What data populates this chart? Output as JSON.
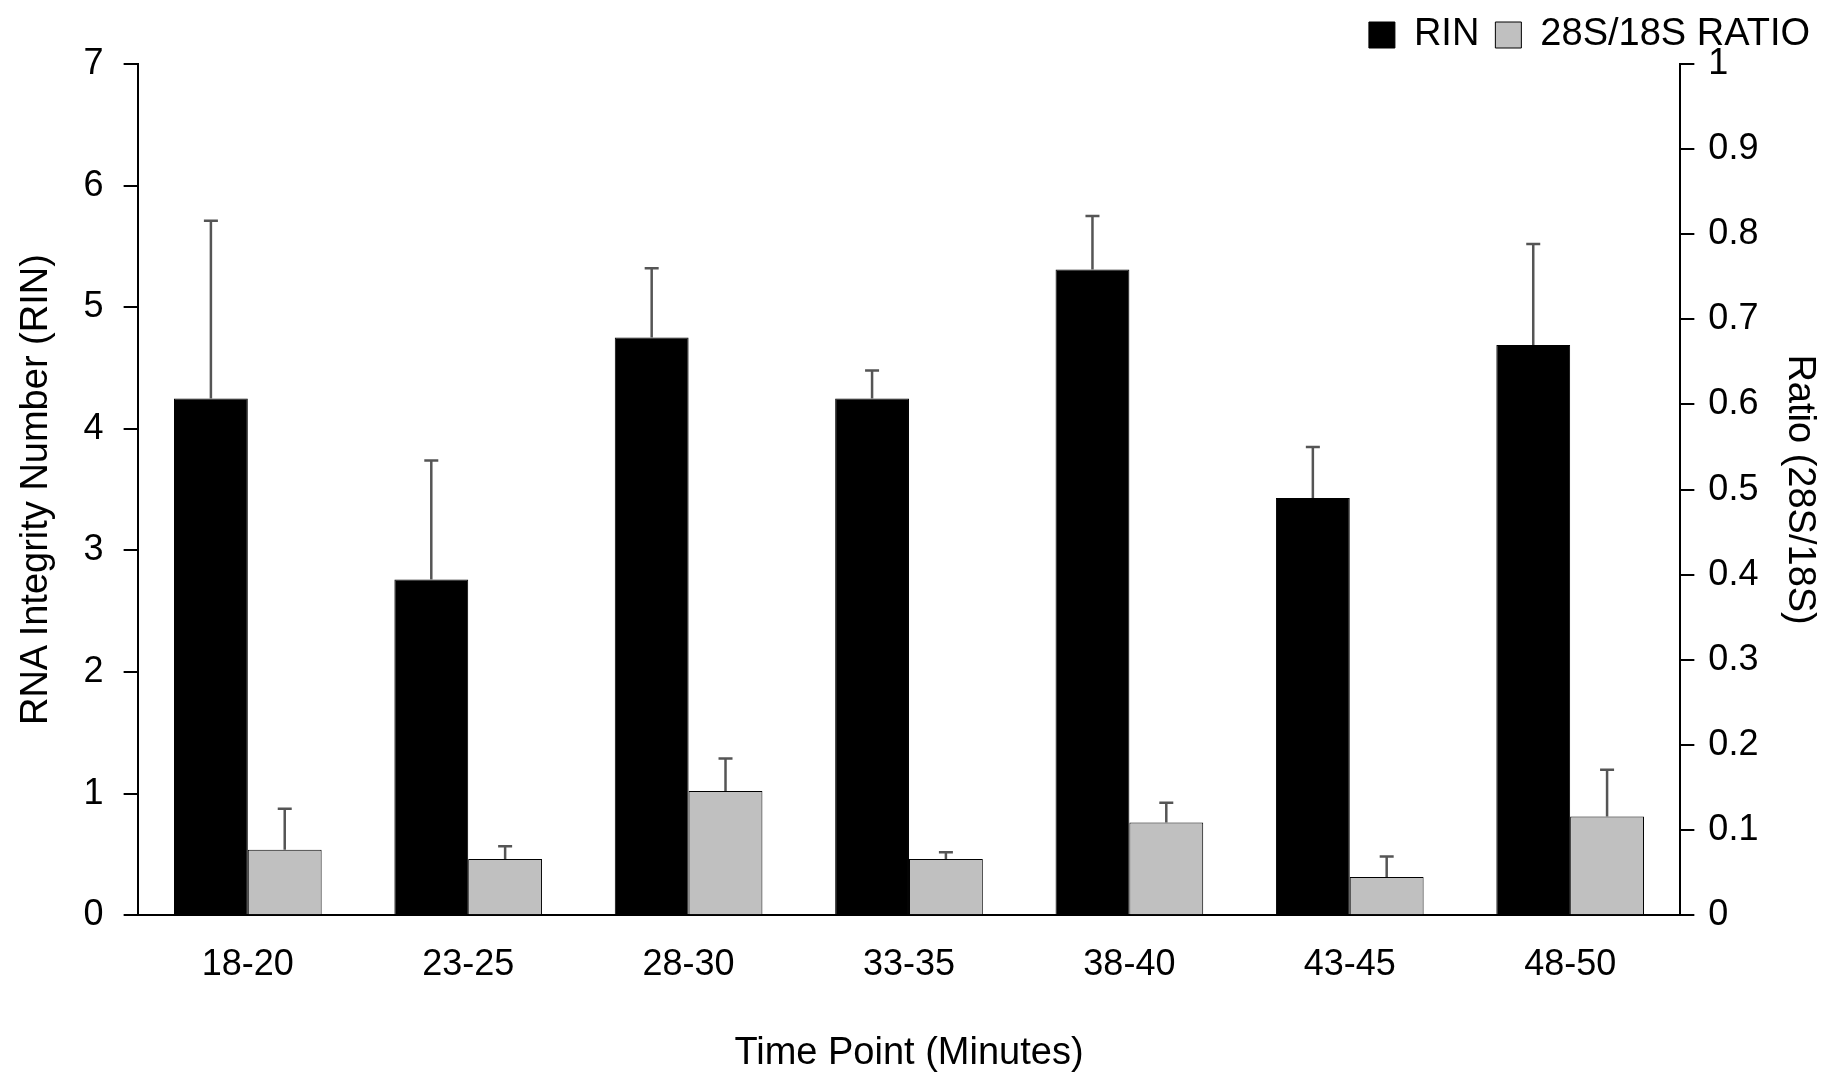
{
  "chart_data": {
    "type": "bar",
    "xlabel": "Time Point (Minutes)",
    "ylabel": "RNA Integrity Number (RIN)",
    "y2label": "Ratio (28S/18S)",
    "categories": [
      "18-20",
      "23-25",
      "28-30",
      "33-35",
      "38-40",
      "43-45",
      "48-50"
    ],
    "series": [
      {
        "name": "RIN",
        "color": "#000000",
        "values": [
          4.25,
          2.76,
          4.75,
          4.25,
          5.31,
          3.43,
          4.69
        ],
        "errors": [
          [
            4.25,
            5.71
          ],
          [
            2.76,
            3.74
          ],
          [
            4.75,
            5.32
          ],
          [
            4.25,
            4.48
          ],
          [
            5.31,
            5.75
          ],
          [
            3.43,
            3.85
          ],
          [
            4.69,
            5.52
          ]
        ]
      },
      {
        "name": "28S/18S RATIO",
        "color": "#c0c0c0",
        "axis": "y2",
        "values": [
          0.077,
          0.066,
          0.146,
          0.066,
          0.109,
          0.045,
          0.116
        ],
        "errors": [
          [
            0.077,
            0.125
          ],
          [
            0.066,
            0.081
          ],
          [
            0.146,
            0.184
          ],
          [
            0.066,
            0.074
          ],
          [
            0.109,
            0.132
          ],
          [
            0.045,
            0.069
          ],
          [
            0.116,
            0.171
          ]
        ]
      }
    ],
    "ylim": [
      0,
      7
    ],
    "yticks": [
      0,
      1,
      2,
      3,
      4,
      5,
      6,
      7
    ],
    "y2lim": [
      0,
      1
    ],
    "y2ticks": [
      0,
      0.1,
      0.2,
      0.3,
      0.4,
      0.5,
      0.6,
      0.7,
      0.8,
      0.9,
      1
    ],
    "legend": "top right",
    "grid": false
  }
}
